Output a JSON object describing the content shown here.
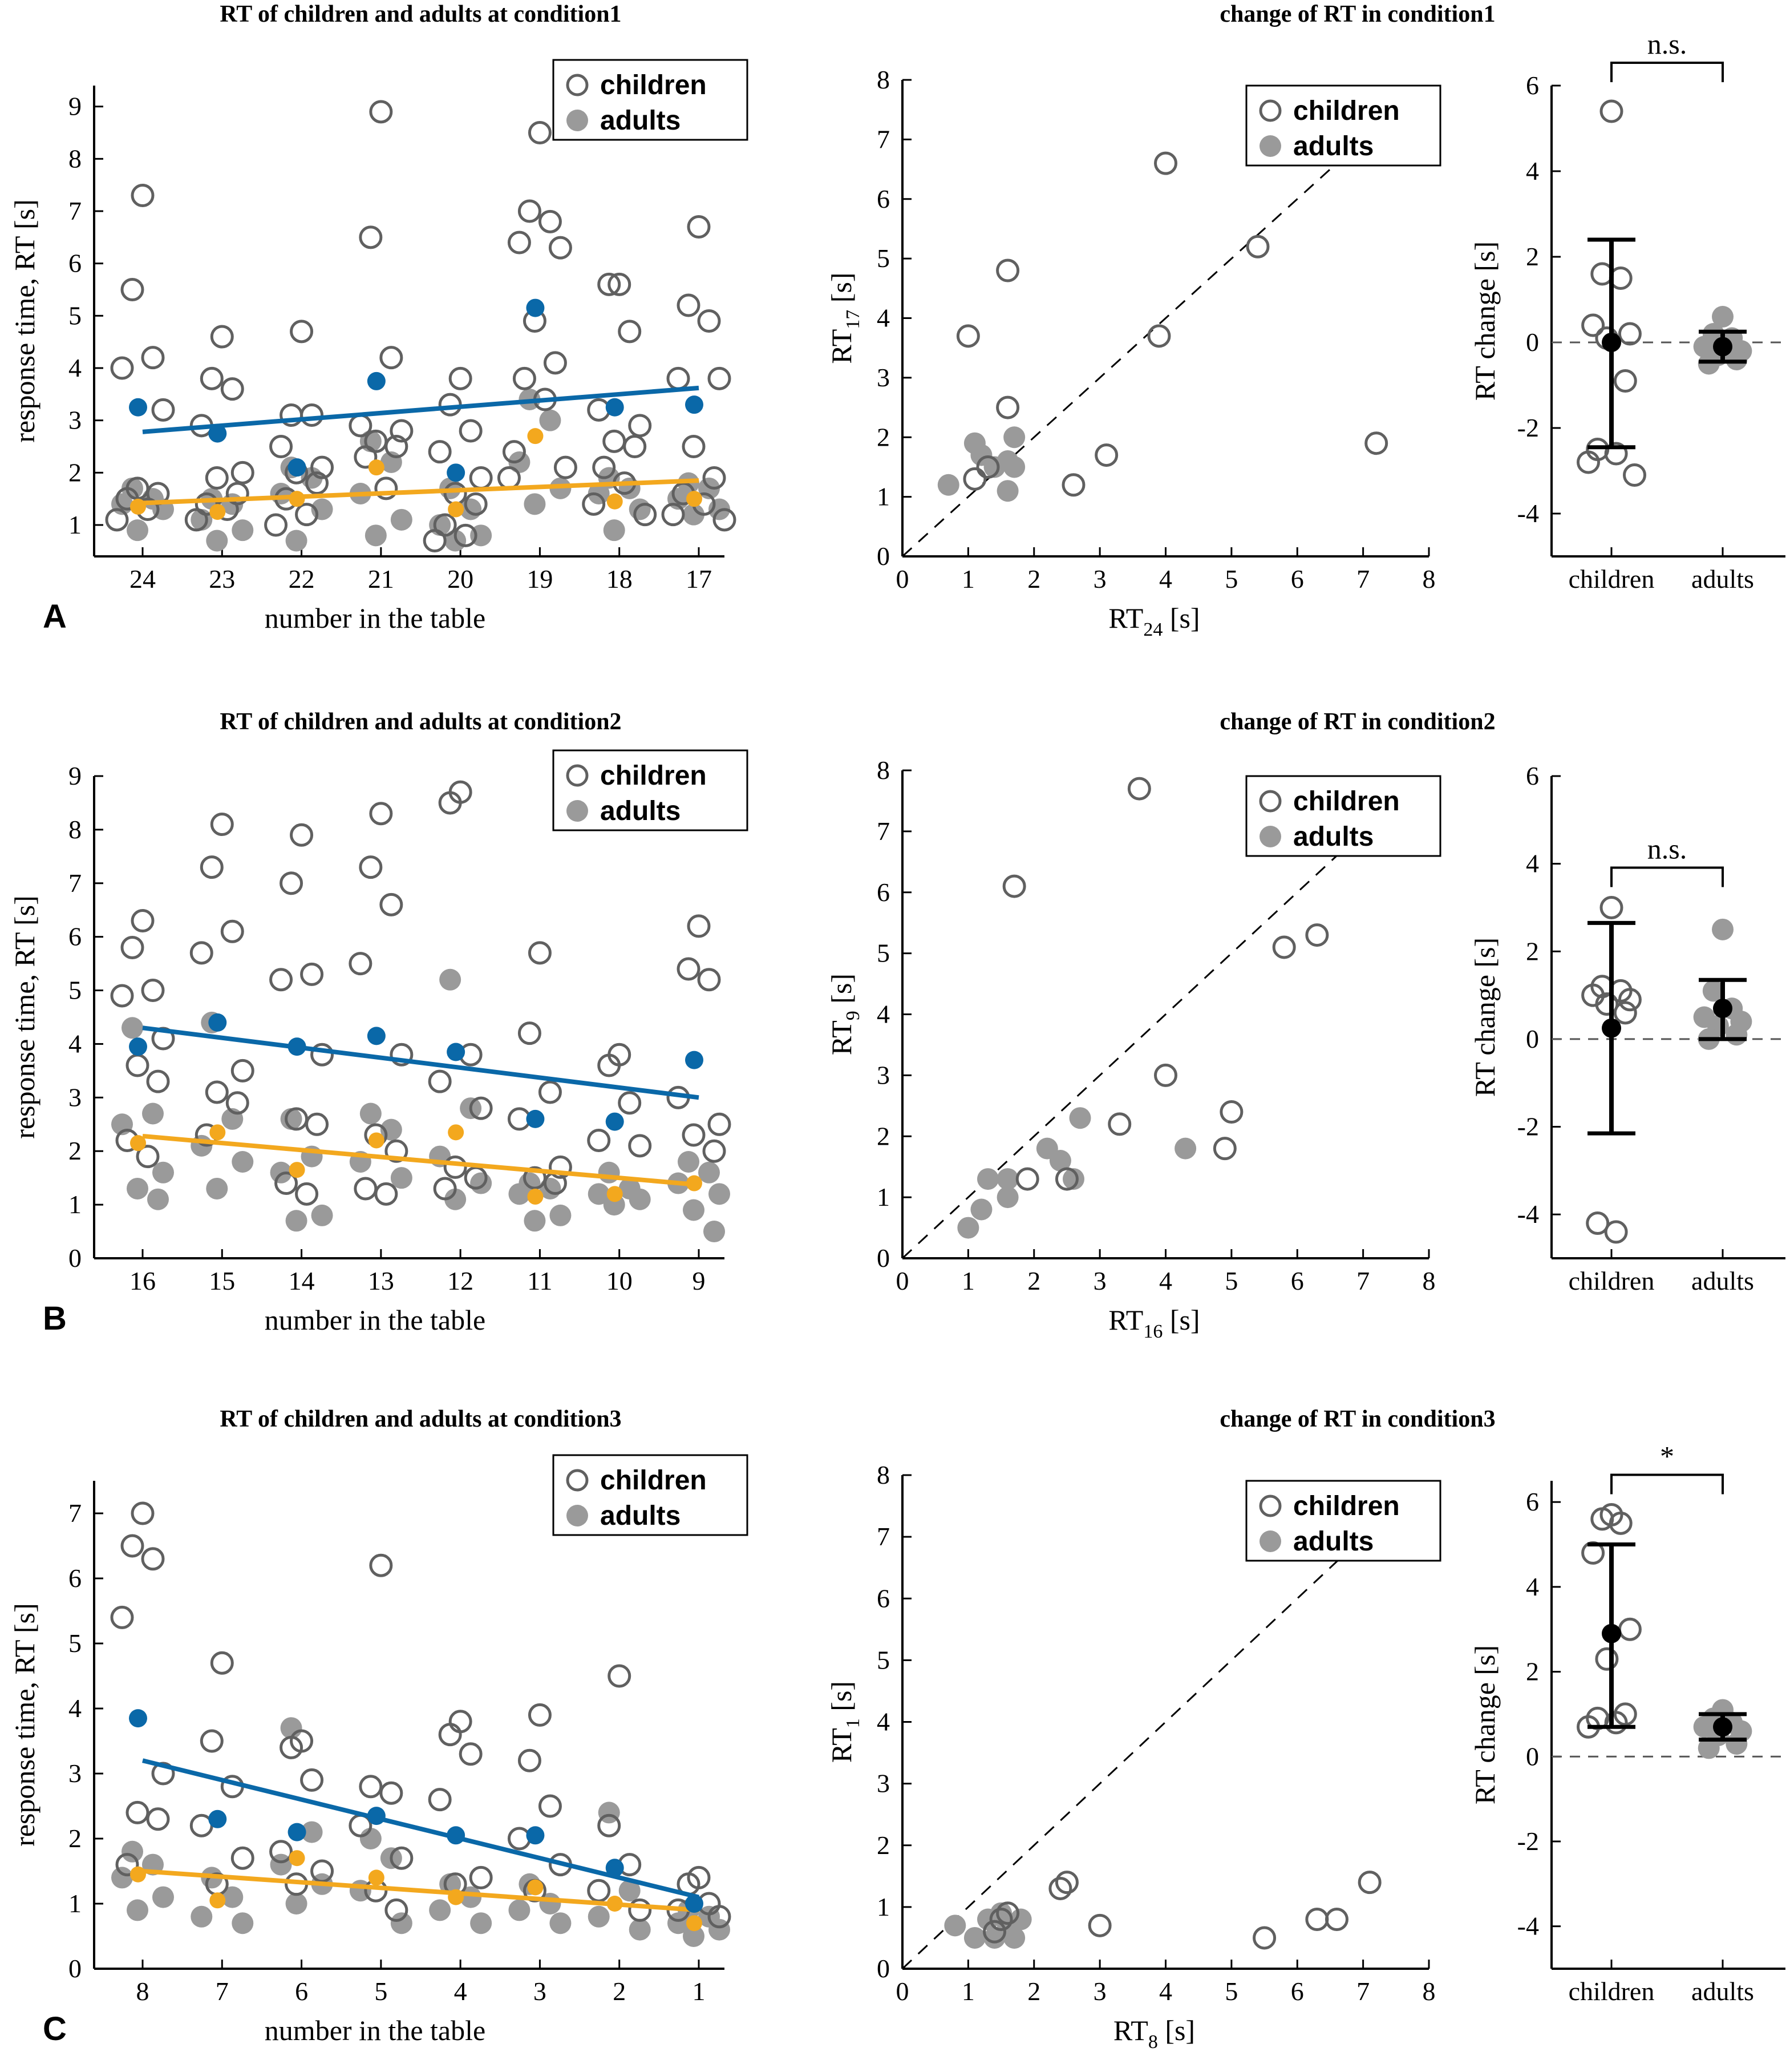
{
  "colors": {
    "child": "#606060",
    "adult": "#9a9a9a",
    "blue": "#0a68a8",
    "orange": "#f3a81e",
    "mean": "#000000"
  },
  "legend": {
    "children": "children",
    "adults": "adults"
  },
  "panel_labels": [
    "A",
    "B",
    "C"
  ],
  "chart_data": [
    {
      "type": "scatter",
      "id": "A_left",
      "title": "RT of children and adults at condition1",
      "xlabel": "number in the table",
      "ylabel": "response time, RT [s]",
      "categories": [
        "24",
        "23",
        "22",
        "21",
        "20",
        "19",
        "18",
        "17"
      ],
      "ylim": [
        0.4,
        9.4
      ],
      "yticks": [
        1,
        2,
        3,
        4,
        5,
        6,
        7,
        8,
        9
      ],
      "children": [
        [
          7.3,
          5.5,
          4.2,
          4.0,
          3.2,
          1.7,
          1.6,
          1.5,
          1.3,
          1.1
        ],
        [
          4.6,
          3.8,
          3.6,
          2.9,
          2.0,
          1.9,
          1.6,
          1.4,
          1.3,
          1.1
        ],
        [
          4.7,
          3.1,
          3.1,
          2.5,
          2.1,
          2.0,
          1.8,
          1.5,
          1.2,
          1.0
        ],
        [
          8.9,
          6.5,
          4.2,
          2.9,
          2.8,
          2.6,
          2.5,
          2.3,
          1.7
        ],
        [
          3.8,
          3.3,
          2.8,
          2.4,
          1.9,
          1.6,
          1.4,
          1.0,
          0.8,
          0.7
        ],
        [
          8.5,
          7.0,
          6.8,
          6.4,
          6.3,
          4.9,
          4.1,
          3.8,
          3.4,
          2.4,
          2.1,
          1.9
        ],
        [
          5.6,
          5.6,
          4.7,
          3.2,
          2.9,
          2.6,
          2.5,
          2.1,
          1.8,
          1.4,
          1.2
        ],
        [
          6.7,
          5.2,
          4.9,
          3.8,
          3.8,
          2.5,
          1.9,
          1.6,
          1.4,
          1.2,
          1.1
        ]
      ],
      "adults": [
        [
          1.7,
          1.5,
          1.4,
          1.3,
          0.9
        ],
        [
          1.5,
          1.4,
          1.1,
          0.9,
          0.7
        ],
        [
          2.1,
          1.9,
          1.6,
          1.3,
          0.7
        ],
        [
          2.6,
          2.2,
          1.6,
          1.1,
          0.8
        ],
        [
          1.7,
          1.3,
          1.0,
          0.8,
          0.7
        ],
        [
          3.4,
          3.0,
          2.2,
          1.7,
          1.4
        ],
        [
          1.9,
          1.7,
          1.6,
          1.3,
          0.9
        ],
        [
          1.8,
          1.7,
          1.5,
          1.3,
          1.2
        ]
      ],
      "means_blue": [
        3.25,
        2.75,
        2.1,
        3.75,
        2.0,
        5.15,
        3.25,
        3.3
      ],
      "means_orange": [
        1.35,
        1.25,
        1.5,
        2.1,
        1.3,
        2.7,
        1.45,
        1.5
      ],
      "fit_blue": [
        2.78,
        3.62
      ],
      "fit_orange": [
        1.42,
        1.85
      ]
    },
    {
      "type": "scatter",
      "id": "A_mid",
      "title": "change of RT in condition1",
      "xlabel": "RT",
      "xlabel_sub": "24",
      "xlabel_tail": " [s]",
      "ylabel": "RT",
      "ylabel_sub": "17",
      "ylabel_tail": " [s]",
      "xlim": [
        0,
        8
      ],
      "ylim": [
        0,
        8
      ],
      "ticks": [
        0,
        1,
        2,
        3,
        4,
        5,
        6,
        7,
        8
      ],
      "children": [
        [
          1.0,
          3.7
        ],
        [
          1.6,
          4.8
        ],
        [
          4.0,
          6.6
        ],
        [
          5.4,
          5.2
        ],
        [
          3.9,
          3.7
        ],
        [
          3.1,
          1.7
        ],
        [
          2.6,
          1.2
        ],
        [
          7.2,
          1.9
        ],
        [
          1.3,
          1.5
        ],
        [
          1.6,
          2.5
        ],
        [
          1.1,
          1.3
        ]
      ],
      "adults": [
        [
          0.7,
          1.2
        ],
        [
          1.1,
          1.9
        ],
        [
          1.2,
          1.7
        ],
        [
          1.4,
          1.5
        ],
        [
          1.6,
          1.6
        ],
        [
          1.6,
          1.1
        ],
        [
          1.7,
          2.0
        ],
        [
          1.7,
          1.5
        ]
      ]
    },
    {
      "type": "scatter",
      "id": "A_right",
      "ylabel": "RT change [s]",
      "categories": [
        "children",
        "adults"
      ],
      "ylim": [
        -5,
        6
      ],
      "yticks": [
        -4,
        -2,
        0,
        2,
        4,
        6
      ],
      "children": [
        5.4,
        1.6,
        1.5,
        0.4,
        0.2,
        0.1,
        -0.9,
        -2.5,
        -2.6,
        -2.8,
        -3.1
      ],
      "adults": [
        0.6,
        0.2,
        0.1,
        -0.1,
        -0.2,
        -0.3,
        -0.4,
        -0.5
      ],
      "children_mean": 0.0,
      "children_err": [
        -2.45,
        2.4
      ],
      "adults_mean": -0.1,
      "adults_err": [
        -0.45,
        0.25
      ],
      "significance": "n.s."
    },
    {
      "type": "scatter",
      "id": "B_left",
      "title": "RT of children and adults at condition2",
      "xlabel": "number in the table",
      "ylabel": "response time, RT [s]",
      "categories": [
        "16",
        "15",
        "14",
        "13",
        "12",
        "11",
        "10",
        "9"
      ],
      "ylim": [
        0,
        9
      ],
      "yticks": [
        0,
        1,
        2,
        3,
        4,
        5,
        6,
        7,
        8,
        9
      ],
      "children": [
        [
          6.3,
          5.8,
          5.0,
          4.9,
          4.1,
          3.6,
          3.3,
          2.2,
          1.9
        ],
        [
          8.1,
          7.3,
          6.1,
          5.7,
          3.5,
          3.1,
          2.9,
          2.3
        ],
        [
          7.9,
          7.0,
          5.3,
          5.2,
          3.8,
          2.6,
          2.5,
          1.4,
          1.2
        ],
        [
          8.3,
          7.3,
          6.6,
          5.5,
          3.8,
          2.3,
          2.0,
          1.3,
          1.2
        ],
        [
          8.7,
          8.5,
          3.8,
          3.3,
          2.8,
          1.7,
          1.5,
          1.3
        ],
        [
          5.7,
          4.2,
          3.1,
          2.6,
          1.7,
          1.5,
          1.4
        ],
        [
          3.8,
          3.6,
          2.9,
          2.2,
          2.1
        ],
        [
          6.2,
          5.4,
          5.2,
          3.0,
          2.5,
          2.3,
          2.0
        ]
      ],
      "adults": [
        [
          4.3,
          2.7,
          2.5,
          1.6,
          1.3,
          1.1
        ],
        [
          4.4,
          2.6,
          2.1,
          1.8,
          1.3
        ],
        [
          2.6,
          1.9,
          1.6,
          0.8,
          0.7
        ],
        [
          2.7,
          2.4,
          1.8,
          1.5
        ],
        [
          5.2,
          2.8,
          1.9,
          1.4,
          1.1
        ],
        [
          1.4,
          1.3,
          1.2,
          0.8,
          0.7
        ],
        [
          1.6,
          1.3,
          1.2,
          1.1,
          1.0
        ],
        [
          1.8,
          1.6,
          1.4,
          1.2,
          0.9,
          0.5
        ]
      ],
      "means_blue": [
        3.95,
        4.4,
        3.95,
        4.15,
        3.85,
        2.6,
        2.55,
        3.7
      ],
      "means_orange": [
        2.15,
        2.35,
        1.65,
        2.2,
        2.35,
        1.15,
        1.2,
        1.4
      ],
      "fit_blue": [
        4.3,
        3.0
      ],
      "fit_orange": [
        2.28,
        1.37
      ]
    },
    {
      "type": "scatter",
      "id": "B_mid",
      "title": "change of RT in condition2",
      "xlabel": "RT",
      "xlabel_sub": "16",
      "xlabel_tail": " [s]",
      "ylabel": "RT",
      "ylabel_sub": "9",
      "ylabel_tail": " [s]",
      "xlim": [
        0,
        8
      ],
      "ylim": [
        0,
        8
      ],
      "ticks": [
        0,
        1,
        2,
        3,
        4,
        5,
        6,
        7,
        8
      ],
      "children": [
        [
          3.6,
          7.7
        ],
        [
          1.7,
          6.1
        ],
        [
          5.8,
          5.1
        ],
        [
          6.3,
          5.3
        ],
        [
          4.0,
          3.0
        ],
        [
          5.0,
          2.4
        ],
        [
          4.9,
          1.8
        ],
        [
          3.3,
          2.2
        ],
        [
          1.9,
          1.3
        ],
        [
          2.5,
          1.3
        ]
      ],
      "adults": [
        [
          1.0,
          0.5
        ],
        [
          1.2,
          0.8
        ],
        [
          1.6,
          1.0
        ],
        [
          1.6,
          1.3
        ],
        [
          1.3,
          1.3
        ],
        [
          2.2,
          1.8
        ],
        [
          2.4,
          1.6
        ],
        [
          2.7,
          2.3
        ],
        [
          2.6,
          1.3
        ],
        [
          4.3,
          1.8
        ]
      ]
    },
    {
      "type": "scatter",
      "id": "B_right",
      "ylabel": "RT change [s]",
      "categories": [
        "children",
        "adults"
      ],
      "ylim": [
        -5,
        6
      ],
      "yticks": [
        -4,
        -2,
        0,
        2,
        4,
        6
      ],
      "children": [
        3.0,
        1.2,
        1.1,
        1.0,
        0.9,
        0.8,
        0.6,
        -4.2,
        -4.4
      ],
      "adults": [
        2.5,
        1.1,
        0.7,
        0.5,
        0.4,
        0.3,
        0.1,
        0.0
      ],
      "children_mean": 0.25,
      "children_err": [
        -2.15,
        2.65
      ],
      "adults_mean": 0.7,
      "adults_err": [
        0.0,
        1.35
      ],
      "significance": "n.s."
    },
    {
      "type": "scatter",
      "id": "C_left",
      "title": "RT of children and adults at condition3",
      "xlabel": "number in the table",
      "ylabel": "response time, RT [s]",
      "categories": [
        "8",
        "7",
        "6",
        "5",
        "4",
        "3",
        "2",
        "1"
      ],
      "ylim": [
        0,
        7.5
      ],
      "yticks": [
        0,
        1,
        2,
        3,
        4,
        5,
        6,
        7
      ],
      "children": [
        [
          7.0,
          6.5,
          6.3,
          5.4,
          3.0,
          2.4,
          2.3,
          1.6
        ],
        [
          4.7,
          3.5,
          2.8,
          2.2,
          1.7,
          1.3
        ],
        [
          3.5,
          3.4,
          2.9,
          1.8,
          1.5,
          1.3
        ],
        [
          6.2,
          2.8,
          2.7,
          2.2,
          1.7,
          1.2,
          0.9
        ],
        [
          3.8,
          3.6,
          3.3,
          2.6,
          1.4,
          1.3
        ],
        [
          3.9,
          3.2,
          2.5,
          2.0,
          1.6,
          1.2
        ],
        [
          4.5,
          2.2,
          1.6,
          1.2,
          0.9
        ],
        [
          1.4,
          1.3,
          1.0,
          0.9,
          0.8
        ]
      ],
      "adults": [
        [
          1.8,
          1.6,
          1.4,
          1.1,
          0.9
        ],
        [
          1.4,
          1.1,
          0.8,
          0.7
        ],
        [
          3.7,
          2.1,
          1.6,
          1.3,
          1.0
        ],
        [
          2.0,
          1.7,
          1.2,
          0.7
        ],
        [
          1.3,
          1.1,
          0.9,
          0.7
        ],
        [
          1.3,
          1.0,
          0.9,
          0.7
        ],
        [
          2.4,
          1.2,
          0.8,
          0.6
        ],
        [
          0.9,
          0.8,
          0.7,
          0.6,
          0.5
        ]
      ],
      "means_blue": [
        3.85,
        2.3,
        2.1,
        2.35,
        2.05,
        2.05,
        1.55,
        1.0
      ],
      "means_orange": [
        1.45,
        1.05,
        1.7,
        1.4,
        1.1,
        1.25,
        1.0,
        0.7
      ],
      "fit_blue": [
        3.2,
        1.1
      ],
      "fit_orange": [
        1.5,
        0.9
      ]
    },
    {
      "type": "scatter",
      "id": "C_mid",
      "title": "change of RT in condition3",
      "xlabel": "RT",
      "xlabel_sub": "8",
      "xlabel_tail": " [s]",
      "ylabel": "RT",
      "ylabel_sub": "1",
      "ylabel_tail": " [s]",
      "xlim": [
        0,
        8
      ],
      "ylim": [
        0,
        8
      ],
      "ticks": [
        0,
        1,
        2,
        3,
        4,
        5,
        6,
        7,
        8
      ],
      "children": [
        [
          7.1,
          1.4
        ],
        [
          6.3,
          0.8
        ],
        [
          6.6,
          0.8
        ],
        [
          5.5,
          0.5
        ],
        [
          3.0,
          0.7
        ],
        [
          2.4,
          1.3
        ],
        [
          2.5,
          1.4
        ],
        [
          1.6,
          0.9
        ],
        [
          1.5,
          0.8
        ],
        [
          1.4,
          0.6
        ]
      ],
      "adults": [
        [
          0.8,
          0.7
        ],
        [
          1.1,
          0.5
        ],
        [
          1.3,
          0.8
        ],
        [
          1.5,
          0.9
        ],
        [
          1.6,
          0.7
        ],
        [
          1.8,
          0.8
        ],
        [
          1.7,
          0.5
        ],
        [
          1.4,
          0.5
        ]
      ]
    },
    {
      "type": "scatter",
      "id": "C_right",
      "ylabel": "RT change [s]",
      "categories": [
        "children",
        "adults"
      ],
      "ylim": [
        -5,
        6.5
      ],
      "yticks": [
        -4,
        -2,
        0,
        2,
        4,
        6
      ],
      "children": [
        5.7,
        5.6,
        5.5,
        4.8,
        3.0,
        2.3,
        1.0,
        0.9,
        0.8,
        0.7
      ],
      "adults": [
        1.1,
        0.9,
        0.8,
        0.7,
        0.6,
        0.5,
        0.3,
        0.2
      ],
      "children_mean": 2.9,
      "children_err": [
        0.7,
        5.0
      ],
      "adults_mean": 0.7,
      "adults_err": [
        0.4,
        1.0
      ],
      "significance": "*"
    }
  ]
}
